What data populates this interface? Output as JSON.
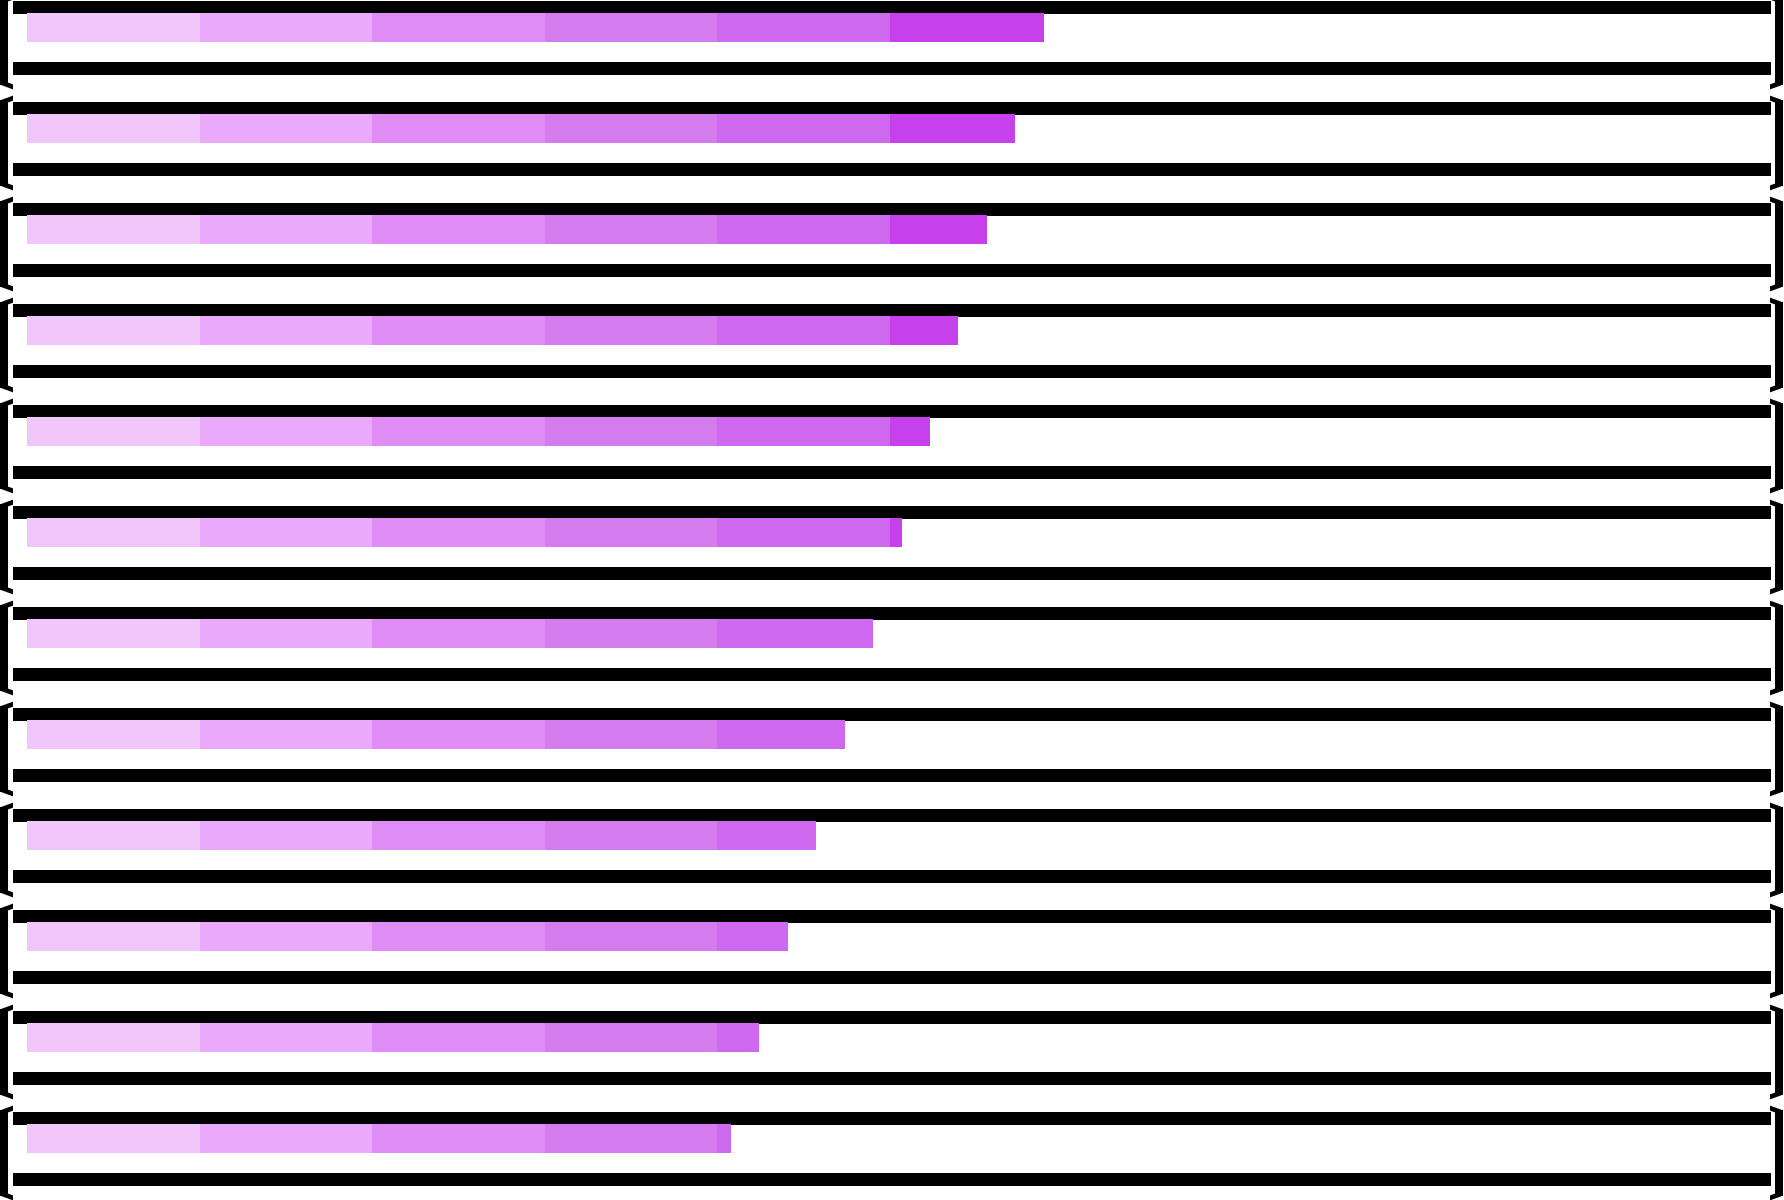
{
  "progress_bars": [
    {
      "progress": 0.588
    },
    {
      "progress": 0.571
    },
    {
      "progress": 0.555
    },
    {
      "progress": 0.538
    },
    {
      "progress": 0.522
    },
    {
      "progress": 0.506
    },
    {
      "progress": 0.489
    },
    {
      "progress": 0.473
    },
    {
      "progress": 0.456
    },
    {
      "progress": 0.44
    },
    {
      "progress": 0.423
    },
    {
      "progress": 0.407
    }
  ],
  "segment_colors": [
    "#f0c6fb",
    "#eaa9fb",
    "#e08cf7",
    "#d47cee",
    "#ce68ee",
    "#c641ec"
  ],
  "frame_color": "#000000",
  "track_color": "#ffffff",
  "background_color": "#ffffff"
}
